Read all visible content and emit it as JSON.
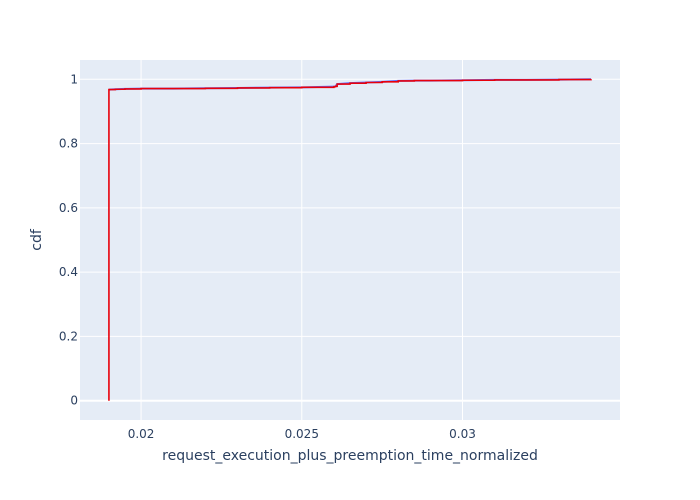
{
  "chart_data": {
    "type": "line",
    "title": "",
    "xlabel": "request_execution_plus_preemption_time_normalized",
    "ylabel": "cdf",
    "xlim": [
      0.0181,
      0.0349
    ],
    "ylim": [
      -0.06,
      1.06
    ],
    "x_ticks": [
      0.02,
      0.025,
      0.03
    ],
    "x_tick_labels": [
      "0.02",
      "0.025",
      "0.03"
    ],
    "y_ticks": [
      0,
      0.2,
      0.4,
      0.6,
      0.8,
      1
    ],
    "y_tick_labels": [
      "0",
      "0.2",
      "0.4",
      "0.6",
      "0.8",
      "1"
    ],
    "grid": true,
    "legend": "none",
    "colors": {
      "plot_bg": "#e5ecf6",
      "grid": "#ffffff",
      "text": "#2a3f5f"
    },
    "series": [
      {
        "color": "#636efa",
        "mode": "line",
        "x": [
          0.019,
          0.0192,
          0.0195,
          0.02,
          0.021,
          0.022,
          0.023,
          0.024,
          0.025,
          0.026,
          0.02605,
          0.0261,
          0.0265,
          0.027,
          0.0275,
          0.028,
          0.0285,
          0.029,
          0.03,
          0.031,
          0.032,
          0.033,
          0.034
        ],
        "y": [
          0.968,
          0.969,
          0.97,
          0.971,
          0.971,
          0.972,
          0.973,
          0.974,
          0.975,
          0.977,
          0.978,
          0.985,
          0.988,
          0.99,
          0.992,
          0.995,
          0.996,
          0.996,
          0.997,
          0.998,
          0.998,
          0.999,
          1.0
        ]
      },
      {
        "color": "#e8000b",
        "mode": "step",
        "x": [
          0.019,
          0.019,
          0.0192,
          0.0195,
          0.02,
          0.021,
          0.022,
          0.023,
          0.024,
          0.025,
          0.026,
          0.02605,
          0.0261,
          0.0265,
          0.027,
          0.0275,
          0.028,
          0.0285,
          0.029,
          0.03,
          0.031,
          0.032,
          0.033,
          0.034
        ],
        "y": [
          0.0,
          0.968,
          0.969,
          0.97,
          0.971,
          0.971,
          0.972,
          0.973,
          0.974,
          0.975,
          0.977,
          0.978,
          0.985,
          0.988,
          0.99,
          0.992,
          0.995,
          0.996,
          0.996,
          0.997,
          0.998,
          0.998,
          0.999,
          1.0
        ]
      }
    ]
  }
}
